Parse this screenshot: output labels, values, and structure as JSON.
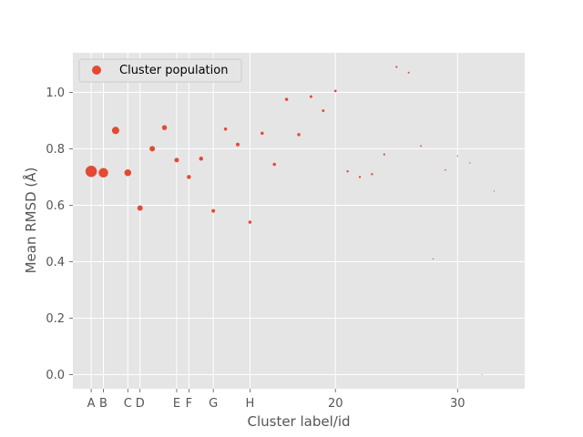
{
  "chart_data": {
    "type": "scatter",
    "xlabel": "Cluster label/id",
    "ylabel": "Mean RMSD (Å)",
    "xlim": [
      -1.5,
      35.5
    ],
    "ylim": [
      -0.05,
      1.14
    ],
    "grid": true,
    "legend": {
      "placement": "top-left",
      "entries": [
        "Cluster population"
      ]
    },
    "x_ticks": [
      {
        "x": 0,
        "label": "A"
      },
      {
        "x": 1,
        "label": "B"
      },
      {
        "x": 3,
        "label": "C"
      },
      {
        "x": 4,
        "label": "D"
      },
      {
        "x": 7,
        "label": "E"
      },
      {
        "x": 8,
        "label": "F"
      },
      {
        "x": 10,
        "label": "G"
      },
      {
        "x": 13,
        "label": "H"
      },
      {
        "x": 20,
        "label": "20"
      },
      {
        "x": 30,
        "label": "30"
      }
    ],
    "y_ticks": [
      0.0,
      0.2,
      0.4,
      0.6,
      0.8,
      1.0
    ],
    "y_tick_labels": [
      "0.0",
      "0.2",
      "0.4",
      "0.6",
      "0.8",
      "1.0"
    ],
    "series": [
      {
        "name": "Cluster population",
        "color": "#E24A33",
        "points": [
          {
            "x": 0,
            "y": 0.72,
            "size": 12.5
          },
          {
            "x": 1,
            "y": 0.715,
            "size": 10.5
          },
          {
            "x": 2,
            "y": 0.865,
            "size": 8
          },
          {
            "x": 3,
            "y": 0.715,
            "size": 7.5
          },
          {
            "x": 4,
            "y": 0.59,
            "size": 6
          },
          {
            "x": 5,
            "y": 0.8,
            "size": 6
          },
          {
            "x": 6,
            "y": 0.875,
            "size": 5.5
          },
          {
            "x": 7,
            "y": 0.76,
            "size": 5
          },
          {
            "x": 8,
            "y": 0.7,
            "size": 4.5
          },
          {
            "x": 9,
            "y": 0.765,
            "size": 4.5
          },
          {
            "x": 10,
            "y": 0.58,
            "size": 4
          },
          {
            "x": 11,
            "y": 0.87,
            "size": 3.5
          },
          {
            "x": 12,
            "y": 0.815,
            "size": 4
          },
          {
            "x": 13,
            "y": 0.54,
            "size": 3.5
          },
          {
            "x": 14,
            "y": 0.855,
            "size": 3.5
          },
          {
            "x": 15,
            "y": 0.745,
            "size": 3.5
          },
          {
            "x": 16,
            "y": 0.975,
            "size": 3.5
          },
          {
            "x": 17,
            "y": 0.85,
            "size": 3.5
          },
          {
            "x": 18,
            "y": 0.985,
            "size": 3
          },
          {
            "x": 19,
            "y": 0.935,
            "size": 2.8
          },
          {
            "x": 20,
            "y": 1.005,
            "size": 2.8
          },
          {
            "x": 21,
            "y": 0.72,
            "size": 2.4
          },
          {
            "x": 22,
            "y": 0.7,
            "size": 2.4
          },
          {
            "x": 23,
            "y": 0.71,
            "size": 2.4
          },
          {
            "x": 24,
            "y": 0.78,
            "size": 2.2
          },
          {
            "x": 25,
            "y": 1.09,
            "size": 2.2
          },
          {
            "x": 26,
            "y": 1.07,
            "size": 2
          },
          {
            "x": 27,
            "y": 0.81,
            "size": 1.8
          },
          {
            "x": 28,
            "y": 0.41,
            "size": 1.4
          },
          {
            "x": 29,
            "y": 0.725,
            "size": 1.6
          },
          {
            "x": 30,
            "y": 0.775,
            "size": 1.4
          },
          {
            "x": 31,
            "y": 0.75,
            "size": 1.4
          },
          {
            "x": 32,
            "y": 0.0,
            "size": 1
          },
          {
            "x": 33,
            "y": 0.65,
            "size": 1.2
          }
        ]
      }
    ]
  }
}
